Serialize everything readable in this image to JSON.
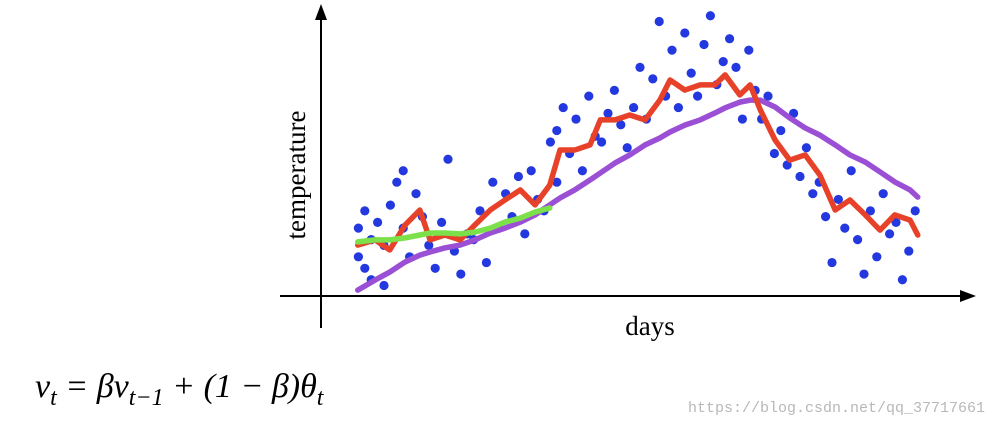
{
  "chart_data": {
    "type": "scatter",
    "x_label": "days",
    "y_label": "temperature",
    "xlim": [
      0,
      100
    ],
    "ylim": [
      0,
      100
    ],
    "scatter": {
      "color": "#2438e0",
      "x": [
        6,
        6,
        7,
        7,
        8,
        8,
        9,
        10,
        10,
        11,
        12,
        13,
        13,
        14,
        15,
        16,
        17,
        18,
        19,
        20,
        21,
        22,
        23,
        24,
        25,
        26,
        27,
        28,
        29,
        30,
        31,
        32,
        33,
        34,
        35,
        36,
        37,
        37,
        38,
        39,
        40,
        41,
        42,
        43,
        44,
        45,
        46,
        47,
        48,
        49,
        50,
        51,
        52,
        53,
        54,
        55,
        56,
        57,
        58,
        59,
        60,
        61,
        62,
        63,
        64,
        65,
        66,
        67,
        68,
        69,
        70,
        71,
        72,
        73,
        74,
        75,
        76,
        77,
        78,
        79,
        80,
        81,
        82,
        83,
        84,
        85,
        86,
        87,
        88,
        89,
        90,
        91,
        92,
        93
      ],
      "values": [
        24,
        14,
        30,
        10,
        20,
        6,
        26,
        18,
        4,
        32,
        40,
        24,
        44,
        14,
        36,
        28,
        18,
        10,
        26,
        48,
        16,
        8,
        22,
        20,
        30,
        12,
        40,
        24,
        36,
        28,
        42,
        22,
        44,
        34,
        30,
        54,
        58,
        40,
        66,
        50,
        62,
        44,
        70,
        56,
        54,
        64,
        72,
        60,
        52,
        66,
        80,
        62,
        76,
        96,
        70,
        86,
        66,
        92,
        78,
        70,
        88,
        98,
        74,
        82,
        90,
        80,
        62,
        86,
        72,
        62,
        70,
        50,
        58,
        46,
        64,
        42,
        52,
        36,
        40,
        28,
        12,
        34,
        24,
        44,
        20,
        8,
        30,
        14,
        36,
        22,
        26,
        6,
        16,
        30
      ]
    },
    "x": [
      5.9,
      8.6,
      10.9,
      13.3,
      15.6,
      17.2,
      19.5,
      21.9,
      24.2,
      26.6,
      28.9,
      31.3,
      33.6,
      35.9,
      37.5,
      39.8,
      42.2,
      43.8,
      46.1,
      48.4,
      50.8,
      53.1,
      54.7,
      57.0,
      59.4,
      61.7,
      63.3,
      65.6,
      67.2,
      68.8,
      71.1,
      73.4,
      75.8,
      78.1,
      80.5,
      82.8,
      85.2,
      87.5,
      89.8,
      92.2,
      93.4
    ],
    "series": [
      {
        "color": "#9b4fd4",
        "values": [
          2.4,
          5.9,
          8.7,
          12.2,
          14.6,
          15.7,
          17.1,
          18.1,
          19.9,
          22.3,
          24.0,
          26.1,
          28.6,
          32.1,
          34.5,
          37.3,
          40.8,
          43.2,
          46.7,
          49.5,
          53.0,
          55.4,
          57.5,
          59.9,
          61.7,
          64.1,
          65.9,
          67.9,
          68.6,
          68.6,
          66.2,
          62.4,
          58.9,
          56.4,
          53.0,
          49.5,
          47.0,
          43.6,
          40.1,
          37.3,
          34.8
        ]
      },
      {
        "color": "#e8412a",
        "values": [
          18.1,
          19.9,
          16.4,
          25.1,
          30.3,
          19.9,
          21.6,
          19.9,
          25.1,
          30.3,
          33.8,
          37.3,
          32.1,
          39.0,
          51.2,
          51.2,
          53.0,
          61.7,
          61.7,
          63.4,
          61.7,
          68.6,
          75.6,
          72.1,
          73.9,
          73.9,
          77.4,
          70.4,
          73.9,
          65.2,
          54.7,
          47.7,
          49.5,
          42.5,
          30.3,
          33.8,
          28.6,
          23.3,
          28.6,
          26.8,
          21.6
        ]
      },
      {
        "color": "#7be04a",
        "values": [
          19.2,
          19.9,
          19.9,
          20.6,
          21.6,
          22.3,
          22.3,
          22.0,
          22.6,
          24.0,
          26.1,
          27.5,
          29.6,
          31.0,
          null,
          null,
          null,
          null,
          null,
          null,
          null,
          null,
          null,
          null,
          null,
          null,
          null,
          null,
          null,
          null,
          null,
          null,
          null,
          null,
          null,
          null,
          null,
          null,
          null,
          null,
          null
        ]
      }
    ]
  },
  "equation": [
    {
      "text": "v",
      "sub": false
    },
    {
      "text": "t",
      "sub": true
    },
    {
      "text": " = β",
      "sub": false
    },
    {
      "text": "v",
      "sub": false
    },
    {
      "text": "t−1",
      "sub": true
    },
    {
      "text": " + (1 − β)θ",
      "sub": false
    },
    {
      "text": "t",
      "sub": true
    }
  ],
  "watermark": "https://blog.csdn.net/qq_37717661"
}
